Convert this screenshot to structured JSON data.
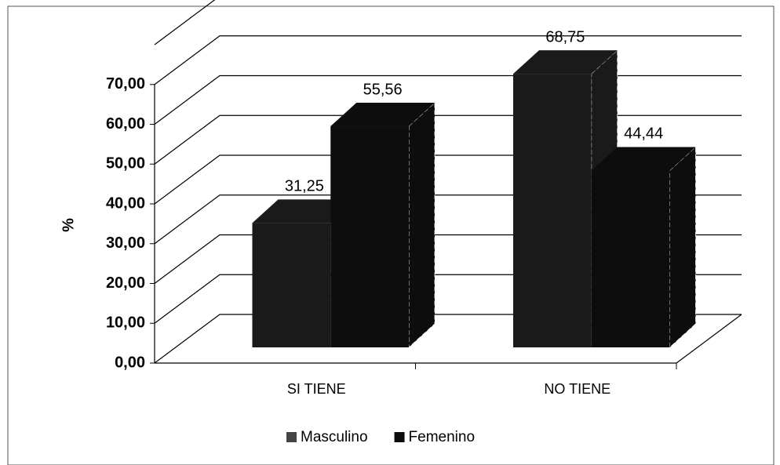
{
  "chart_data": {
    "type": "bar3d",
    "y_label": "%",
    "categories": [
      "SI TIENE",
      "NO TIENE"
    ],
    "series": [
      {
        "name": "Masculino",
        "color": "#1a1a1a",
        "values": [
          31.25,
          68.75
        ],
        "value_labels": [
          "31,25",
          "68,75"
        ]
      },
      {
        "name": "Femenino",
        "color": "#0d0d0d",
        "values": [
          55.56,
          44.44
        ],
        "value_labels": [
          "55,56",
          "44,44"
        ]
      }
    ],
    "ylim": [
      0,
      80
    ],
    "yticks": [
      {
        "value": 0,
        "label": "0,00"
      },
      {
        "value": 10,
        "label": "10,00"
      },
      {
        "value": 20,
        "label": "20,00"
      },
      {
        "value": 30,
        "label": "30,00"
      },
      {
        "value": 40,
        "label": "40,00"
      },
      {
        "value": 50,
        "label": "50,00"
      },
      {
        "value": 60,
        "label": "60,00"
      },
      {
        "value": 70,
        "label": "70,00"
      }
    ],
    "grid": true,
    "legend": "bottom"
  }
}
